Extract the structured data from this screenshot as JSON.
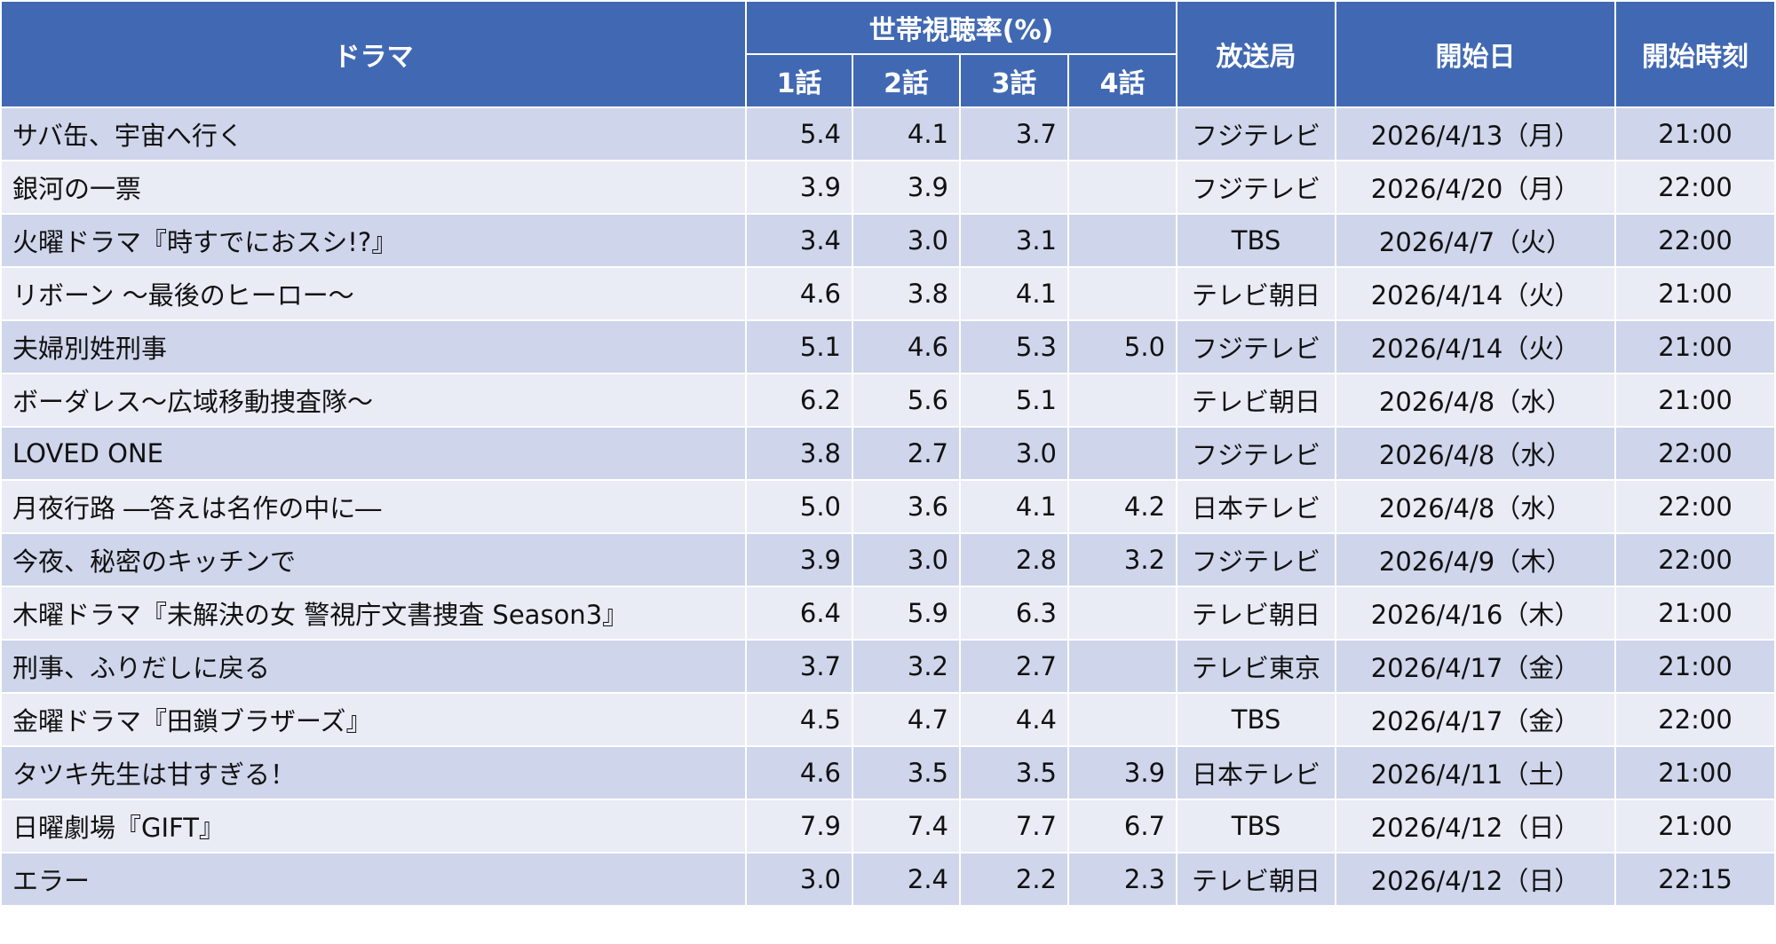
{
  "table": {
    "header": {
      "drama": "ドラマ",
      "rating": "世帯視聴率(%)",
      "episodes": [
        "1話",
        "2話",
        "3話",
        "4話"
      ],
      "station": "放送局",
      "start_date": "開始日",
      "start_time": "開始時刻"
    },
    "rows": [
      [
        "サバ缶、宇宙へ行く",
        "5.4",
        "4.1",
        "3.7",
        null,
        "フジテレビ",
        "2026/4/13（月）",
        "21:00"
      ],
      [
        "銀河の一票",
        "3.9",
        "3.9",
        null,
        null,
        "フジテレビ",
        "2026/4/20（月）",
        "22:00"
      ],
      [
        "火曜ドラマ『時すでにおスシ!?』",
        "3.4",
        "3.0",
        "3.1",
        null,
        "TBS",
        "2026/4/7（火）",
        "22:00"
      ],
      [
        "リボーン ～最後のヒーロー～",
        "4.6",
        "3.8",
        "4.1",
        null,
        "テレビ朝日",
        "2026/4/14（火）",
        "21:00"
      ],
      [
        "夫婦別姓刑事",
        "5.1",
        "4.6",
        "5.3",
        "5.0",
        "フジテレビ",
        "2026/4/14（火）",
        "21:00"
      ],
      [
        "ボーダレス～広域移動捜査隊～",
        "6.2",
        "5.6",
        "5.1",
        null,
        "テレビ朝日",
        "2026/4/8（水）",
        "21:00"
      ],
      [
        "LOVED ONE",
        "3.8",
        "2.7",
        "3.0",
        null,
        "フジテレビ",
        "2026/4/8（水）",
        "22:00"
      ],
      [
        "月夜行路 ―答えは名作の中に―",
        "5.0",
        "3.6",
        "4.1",
        "4.2",
        "日本テレビ",
        "2026/4/8（水）",
        "22:00"
      ],
      [
        "今夜、秘密のキッチンで",
        "3.9",
        "3.0",
        "2.8",
        "3.2",
        "フジテレビ",
        "2026/4/9（木）",
        "22:00"
      ],
      [
        "木曜ドラマ『未解決の女 警視庁文書捜査 Season3』",
        "6.4",
        "5.9",
        "6.3",
        null,
        "テレビ朝日",
        "2026/4/16（木）",
        "21:00"
      ],
      [
        "刑事、ふりだしに戻る",
        "3.7",
        "3.2",
        "2.7",
        null,
        "テレビ東京",
        "2026/4/17（金）",
        "21:00"
      ],
      [
        "金曜ドラマ『田鎖ブラザーズ』",
        "4.5",
        "4.7",
        "4.4",
        null,
        "TBS",
        "2026/4/17（金）",
        "22:00"
      ],
      [
        "タツキ先生は甘すぎる！",
        "4.6",
        "3.5",
        "3.5",
        "3.9",
        "日本テレビ",
        "2026/4/11（土）",
        "21:00"
      ],
      [
        "日曜劇場『GIFT』",
        "7.9",
        "7.4",
        "7.7",
        "6.7",
        "TBS",
        "2026/4/12（日）",
        "21:00"
      ],
      [
        "エラー",
        "3.0",
        "2.4",
        "2.2",
        "2.3",
        "テレビ朝日",
        "2026/4/12（日）",
        "22:15"
      ]
    ]
  }
}
